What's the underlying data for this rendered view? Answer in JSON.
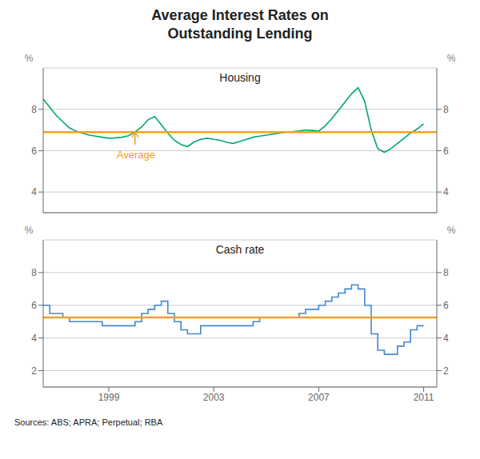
{
  "chart_data": [
    {
      "type": "line",
      "title": "Average Interest Rates on\nOutstanding Lending",
      "subtitle": "Housing",
      "x": [
        1996.5,
        1996.75,
        1997.0,
        1997.25,
        1997.5,
        1997.75,
        1998.0,
        1998.25,
        1998.5,
        1998.75,
        1999.0,
        1999.25,
        1999.5,
        1999.75,
        2000.0,
        2000.25,
        2000.5,
        2000.75,
        2001.0,
        2001.25,
        2001.5,
        2001.75,
        2002.0,
        2002.25,
        2002.5,
        2002.75,
        2003.0,
        2003.25,
        2003.5,
        2003.75,
        2004.0,
        2004.25,
        2004.5,
        2004.75,
        2005.0,
        2005.25,
        2005.5,
        2005.75,
        2006.0,
        2006.25,
        2006.5,
        2006.75,
        2007.0,
        2007.25,
        2007.5,
        2007.75,
        2008.0,
        2008.25,
        2008.5,
        2008.75,
        2009.0,
        2009.25,
        2009.5,
        2009.75,
        2010.0,
        2010.25,
        2010.5,
        2010.75,
        2011.0
      ],
      "series": [
        {
          "type": "line",
          "color": "#00aa66",
          "values": [
            8.5,
            8.1,
            7.7,
            7.4,
            7.1,
            6.95,
            6.85,
            6.75,
            6.7,
            6.65,
            6.6,
            6.62,
            6.65,
            6.72,
            6.9,
            7.15,
            7.5,
            7.65,
            7.25,
            6.85,
            6.5,
            6.3,
            6.2,
            6.42,
            6.55,
            6.6,
            6.55,
            6.5,
            6.4,
            6.35,
            6.45,
            6.55,
            6.65,
            6.7,
            6.75,
            6.8,
            6.85,
            6.9,
            6.92,
            6.95,
            7.0,
            6.98,
            6.95,
            7.2,
            7.55,
            7.95,
            8.35,
            8.75,
            9.05,
            8.4,
            7.0,
            6.1,
            5.92,
            6.1,
            6.35,
            6.6,
            6.85,
            7.05,
            7.3
          ]
        }
      ],
      "xlim": [
        1996.5,
        2011.5
      ],
      "xticks": [
        1999,
        2003,
        2007,
        2011
      ],
      "ylim": [
        3,
        10
      ],
      "yticks": [
        4,
        6,
        8
      ],
      "y2lim": [
        3,
        10
      ],
      "y2ticks": [
        4,
        6,
        8
      ],
      "y_label": "%",
      "y2_label": "%",
      "grid": "y",
      "tick_labels": "y",
      "reference_line": {
        "value": 6.9,
        "color": "#f5a020"
      },
      "annotations": [
        {
          "text": "Average",
          "x": 1999.3,
          "y": 6.1,
          "color": "#f5a020",
          "arrow": {
            "x": 2000.0,
            "y_from": 6.3,
            "y_to": 6.88
          }
        }
      ]
    },
    {
      "type": "line",
      "subtitle": "Cash rate",
      "x": [
        1996.5,
        1996.75,
        1997.0,
        1997.25,
        1997.5,
        1997.75,
        1998.0,
        1998.25,
        1998.5,
        1998.75,
        1999.0,
        1999.25,
        1999.5,
        1999.75,
        2000.0,
        2000.25,
        2000.5,
        2000.75,
        2001.0,
        2001.25,
        2001.5,
        2001.75,
        2002.0,
        2002.25,
        2002.5,
        2002.75,
        2003.0,
        2003.25,
        2003.5,
        2003.75,
        2004.0,
        2004.25,
        2004.5,
        2004.75,
        2005.0,
        2005.25,
        2005.5,
        2005.75,
        2006.0,
        2006.25,
        2006.5,
        2006.75,
        2007.0,
        2007.25,
        2007.5,
        2007.75,
        2008.0,
        2008.25,
        2008.5,
        2008.75,
        2009.0,
        2009.25,
        2009.5,
        2009.75,
        2010.0,
        2010.25,
        2010.5,
        2010.75,
        2011.0
      ],
      "series": [
        {
          "type": "step",
          "color": "#4488cc",
          "values": [
            6.0,
            5.5,
            5.5,
            5.25,
            5.0,
            5.0,
            5.0,
            5.0,
            5.0,
            4.75,
            4.75,
            4.75,
            4.75,
            4.75,
            5.0,
            5.5,
            5.75,
            6.0,
            6.25,
            5.5,
            5.0,
            4.5,
            4.25,
            4.25,
            4.75,
            4.75,
            4.75,
            4.75,
            4.75,
            4.75,
            4.75,
            4.75,
            5.0,
            5.25,
            5.25,
            5.25,
            5.25,
            5.25,
            5.25,
            5.5,
            5.75,
            5.75,
            6.0,
            6.25,
            6.5,
            6.75,
            7.0,
            7.25,
            7.0,
            6.0,
            4.25,
            3.25,
            3.0,
            3.0,
            3.5,
            3.75,
            4.5,
            4.75,
            4.75
          ]
        }
      ],
      "xlim": [
        1996.5,
        2011.5
      ],
      "xticks": [
        1999,
        2003,
        2007,
        2011
      ],
      "ylim": [
        1,
        10
      ],
      "yticks": [
        2,
        4,
        6,
        8
      ],
      "y2lim": [
        1,
        10
      ],
      "y2ticks": [
        2,
        4,
        6,
        8
      ],
      "y_label": "%",
      "y2_label": "%",
      "grid": "y",
      "reference_line": {
        "value": 5.25,
        "color": "#f5a020"
      },
      "annotations": [
        {
          "text": "Sources: ABS; APRA; Perpetual; RBA"
        }
      ]
    }
  ]
}
